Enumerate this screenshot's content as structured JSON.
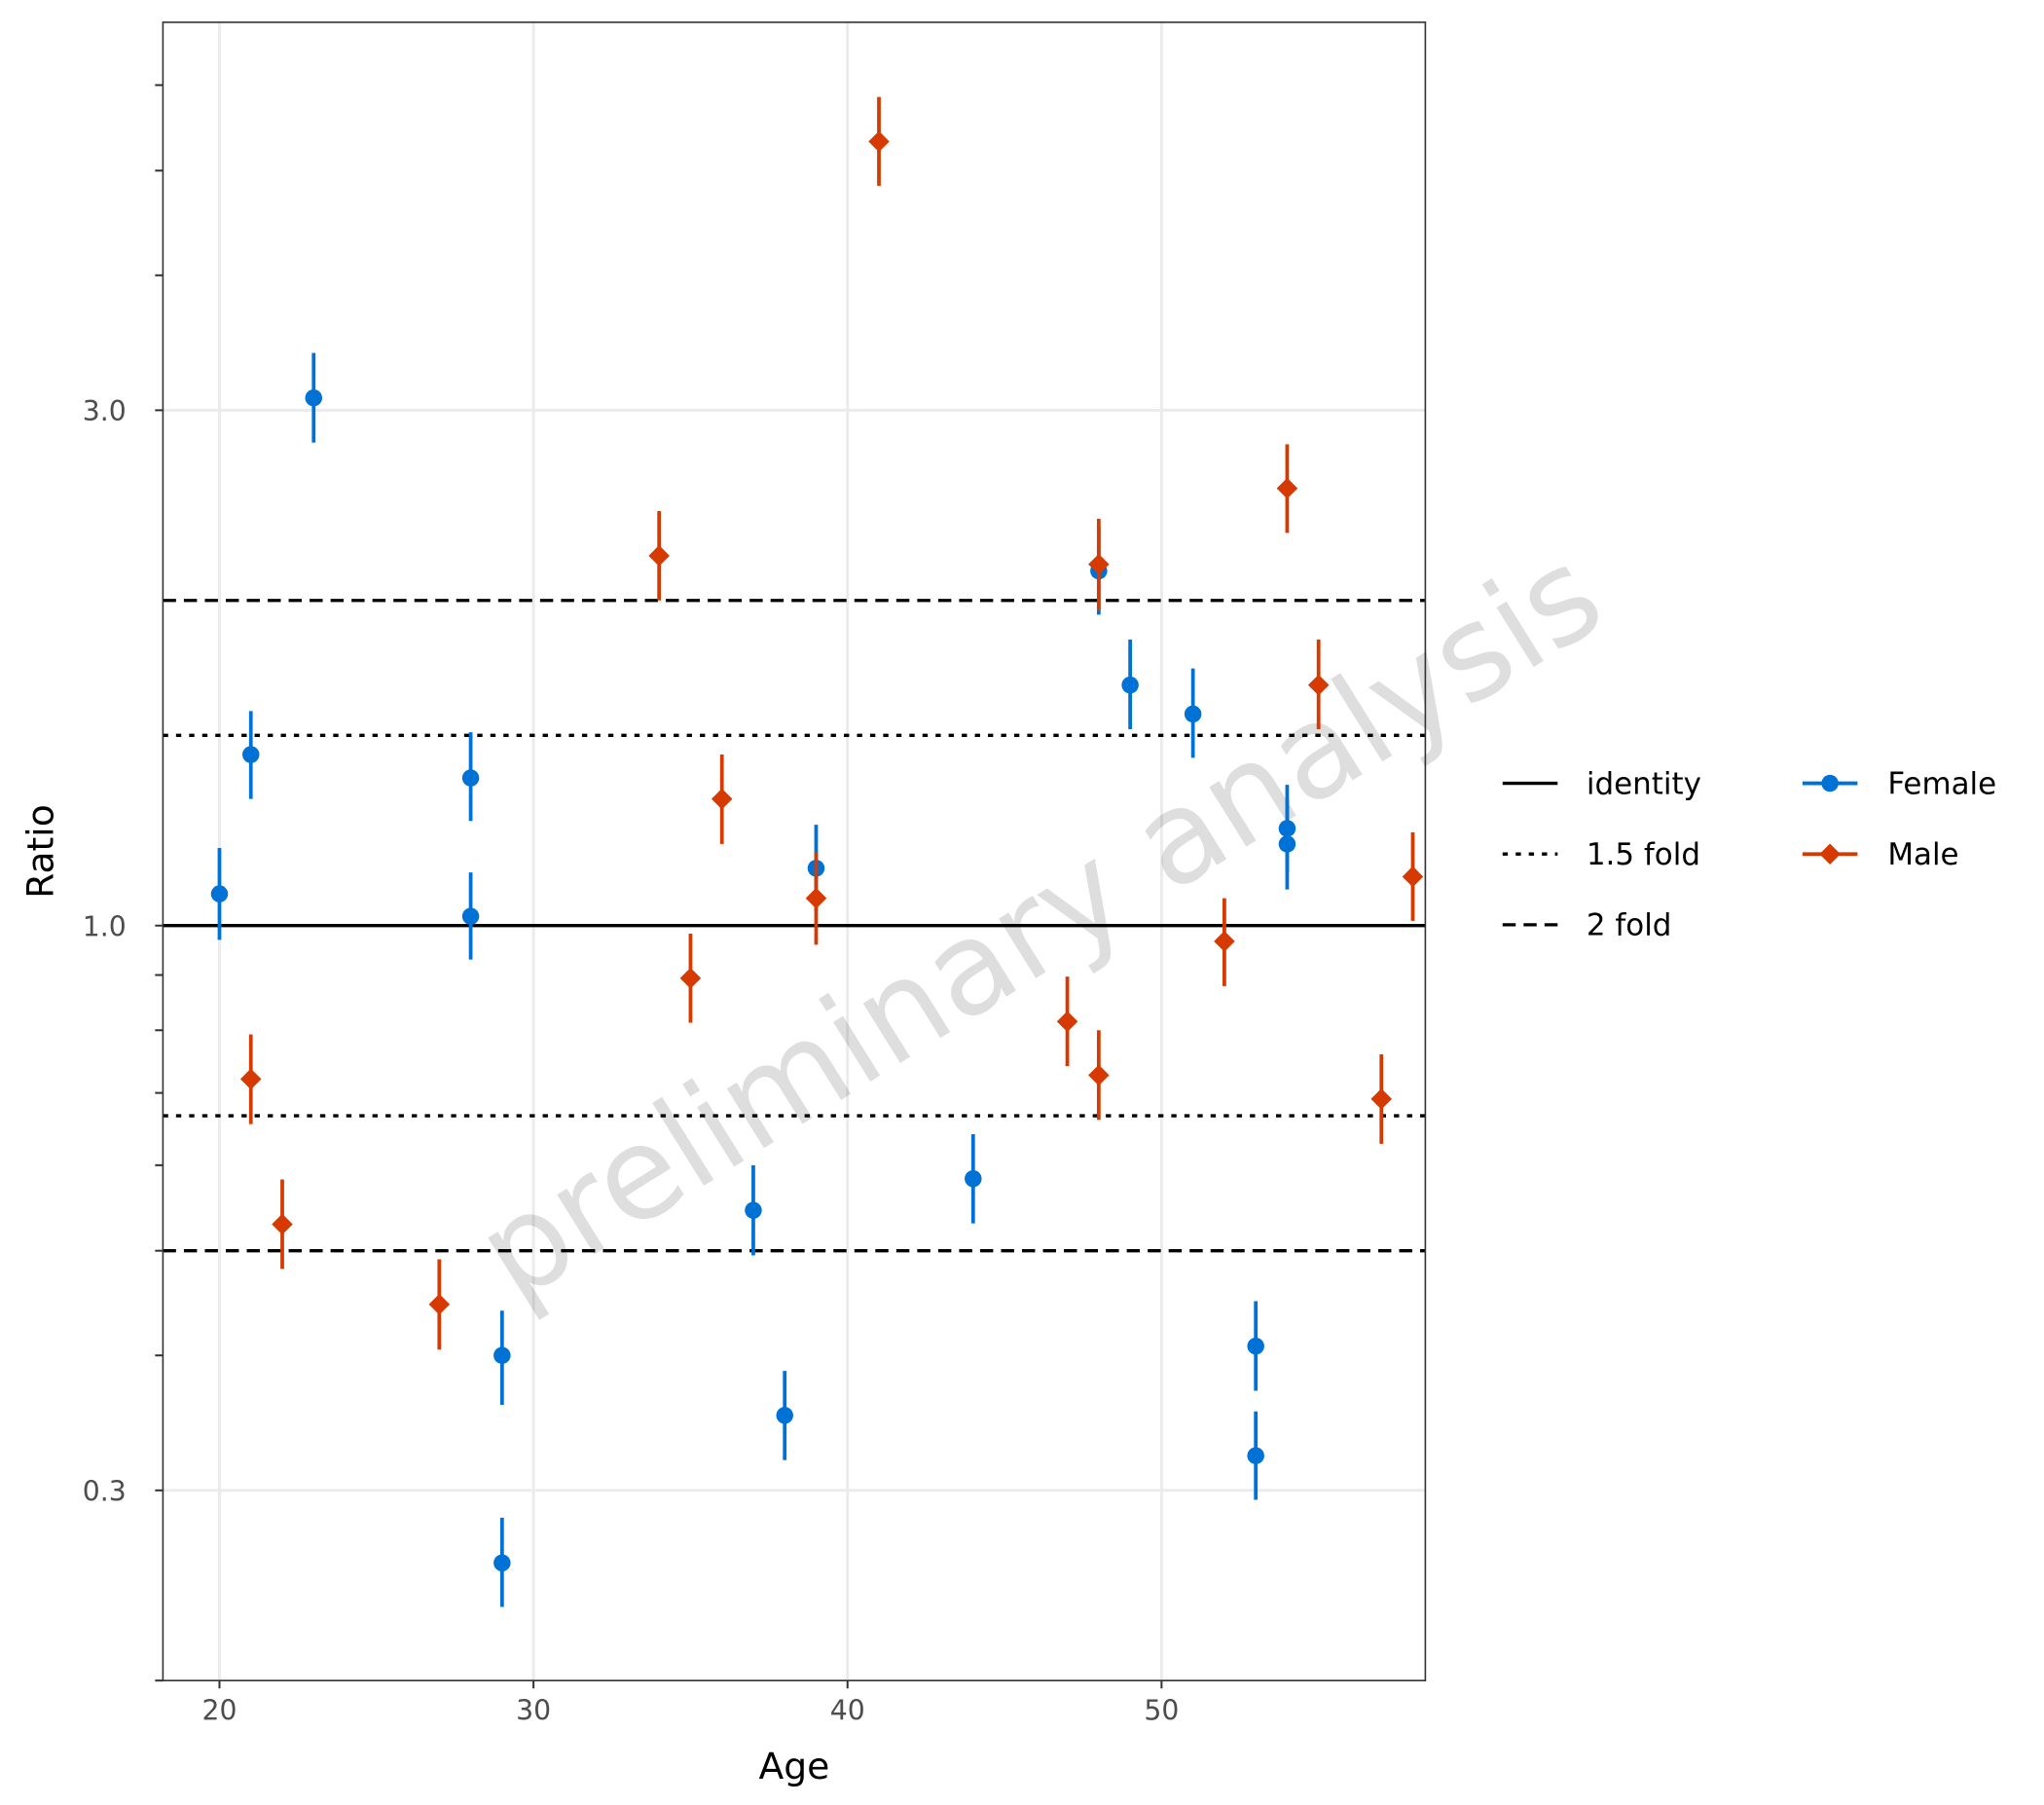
{
  "chart_data": {
    "type": "scatter",
    "xlabel": "Age",
    "ylabel": "Ratio",
    "x_scale": "linear",
    "y_scale": "log",
    "xlim": [
      18.2,
      58.4
    ],
    "ylim": [
      0.2,
      6.86
    ],
    "x_ticks": [
      20,
      30,
      40,
      50
    ],
    "y_ticks": [
      0.3,
      1.0,
      3.0
    ],
    "y_tick_labels": [
      "0.3",
      "1.0",
      "3.0"
    ],
    "y_minor_ticks": [
      0.2,
      0.4,
      0.5,
      0.6,
      0.7,
      0.8,
      0.9,
      4,
      5,
      6
    ],
    "grid": true,
    "legend_position": "right",
    "reference_lines": [
      {
        "name": "identity",
        "style": "solid",
        "values": [
          1.0
        ]
      },
      {
        "name": "1.5 fold",
        "style": "dotted",
        "values": [
          1.5,
          0.6667
        ]
      },
      {
        "name": "2 fold",
        "style": "dashed",
        "values": [
          2.0,
          0.5
        ]
      }
    ],
    "series": [
      {
        "name": "Female",
        "color": "#0072d6",
        "marker": "circle",
        "points": [
          {
            "x": 20,
            "y": 1.07,
            "lower": 0.97,
            "upper": 1.18
          },
          {
            "x": 21,
            "y": 1.44,
            "lower": 1.31,
            "upper": 1.58
          },
          {
            "x": 23,
            "y": 3.08,
            "lower": 2.8,
            "upper": 3.39
          },
          {
            "x": 28,
            "y": 1.37,
            "lower": 1.25,
            "upper": 1.51
          },
          {
            "x": 28,
            "y": 1.02,
            "lower": 0.93,
            "upper": 1.12
          },
          {
            "x": 29,
            "y": 0.4,
            "lower": 0.36,
            "upper": 0.44
          },
          {
            "x": 29,
            "y": 0.257,
            "lower": 0.234,
            "upper": 0.283
          },
          {
            "x": 37,
            "y": 0.545,
            "lower": 0.495,
            "upper": 0.6
          },
          {
            "x": 38,
            "y": 0.352,
            "lower": 0.32,
            "upper": 0.387
          },
          {
            "x": 39,
            "y": 1.13,
            "lower": 1.03,
            "upper": 1.24
          },
          {
            "x": 44,
            "y": 0.583,
            "lower": 0.53,
            "upper": 0.641
          },
          {
            "x": 48,
            "y": 2.13,
            "lower": 1.94,
            "upper": 2.34
          },
          {
            "x": 49,
            "y": 1.67,
            "lower": 1.52,
            "upper": 1.84
          },
          {
            "x": 51,
            "y": 1.57,
            "lower": 1.43,
            "upper": 1.73
          },
          {
            "x": 53,
            "y": 0.408,
            "lower": 0.371,
            "upper": 0.449
          },
          {
            "x": 53,
            "y": 0.323,
            "lower": 0.294,
            "upper": 0.355
          },
          {
            "x": 54,
            "y": 1.23,
            "lower": 1.12,
            "upper": 1.35
          },
          {
            "x": 54,
            "y": 1.19,
            "lower": 1.08,
            "upper": 1.31
          }
        ]
      },
      {
        "name": "Male",
        "color": "#d63a00",
        "marker": "diamond",
        "points": [
          {
            "x": 21,
            "y": 0.721,
            "lower": 0.655,
            "upper": 0.793
          },
          {
            "x": 22,
            "y": 0.529,
            "lower": 0.481,
            "upper": 0.582
          },
          {
            "x": 27,
            "y": 0.446,
            "lower": 0.405,
            "upper": 0.491
          },
          {
            "x": 34,
            "y": 2.2,
            "lower": 2.0,
            "upper": 2.42
          },
          {
            "x": 35,
            "y": 0.894,
            "lower": 0.813,
            "upper": 0.983
          },
          {
            "x": 36,
            "y": 1.31,
            "lower": 1.19,
            "upper": 1.44
          },
          {
            "x": 39,
            "y": 1.06,
            "lower": 0.96,
            "upper": 1.17
          },
          {
            "x": 41,
            "y": 5.32,
            "lower": 4.84,
            "upper": 5.85
          },
          {
            "x": 47,
            "y": 0.815,
            "lower": 0.741,
            "upper": 0.897
          },
          {
            "x": 48,
            "y": 2.16,
            "lower": 1.96,
            "upper": 2.38
          },
          {
            "x": 48,
            "y": 0.727,
            "lower": 0.661,
            "upper": 0.8
          },
          {
            "x": 52,
            "y": 0.967,
            "lower": 0.879,
            "upper": 1.06
          },
          {
            "x": 54,
            "y": 2.54,
            "lower": 2.31,
            "upper": 2.79
          },
          {
            "x": 55,
            "y": 1.67,
            "lower": 1.52,
            "upper": 1.84
          },
          {
            "x": 57,
            "y": 0.691,
            "lower": 0.628,
            "upper": 0.76
          },
          {
            "x": 58,
            "y": 1.11,
            "lower": 1.01,
            "upper": 1.22
          }
        ]
      }
    ],
    "watermark": "preliminary analysis",
    "watermark_color": "#cccccc"
  }
}
